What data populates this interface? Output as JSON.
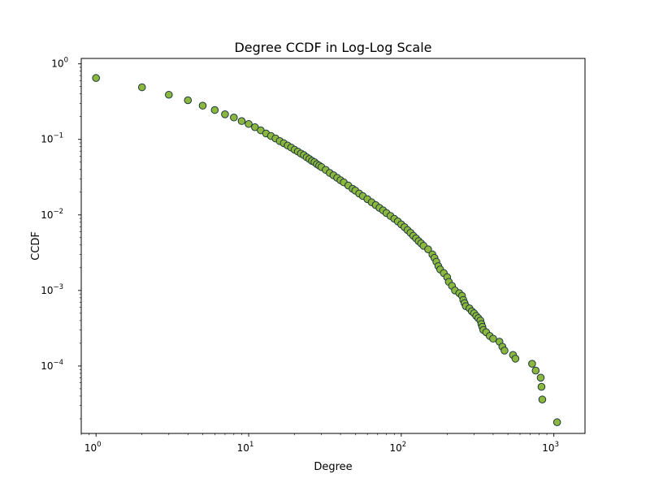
{
  "chart_data": {
    "type": "scatter",
    "title": "Degree CCDF in Log-Log Scale",
    "xlabel": "Degree",
    "ylabel": "CCDF",
    "xscale": "log",
    "yscale": "log",
    "xlim": [
      0.8,
      1600
    ],
    "ylim": [
      1.28e-05,
      1.18
    ],
    "grid": false,
    "legend": "none",
    "marker_fill": "#8db63f",
    "marker_edge": "#1c3a3e",
    "x_ticks": [
      {
        "value": 1,
        "base": "10",
        "exp": "0"
      },
      {
        "value": 10,
        "base": "10",
        "exp": "1"
      },
      {
        "value": 100,
        "base": "10",
        "exp": "2"
      },
      {
        "value": 1000,
        "base": "10",
        "exp": "3"
      }
    ],
    "y_ticks": [
      {
        "value": 0.0001,
        "base": "10",
        "exp": "−4"
      },
      {
        "value": 0.001,
        "base": "10",
        "exp": "−3"
      },
      {
        "value": 0.01,
        "base": "10",
        "exp": "−2"
      },
      {
        "value": 0.1,
        "base": "10",
        "exp": "−1"
      },
      {
        "value": 1,
        "base": "10",
        "exp": "0"
      }
    ],
    "points": [
      [
        1,
        0.65
      ],
      [
        2,
        0.49
      ],
      [
        3,
        0.39
      ],
      [
        4,
        0.33
      ],
      [
        5,
        0.28
      ],
      [
        6,
        0.245
      ],
      [
        7,
        0.215
      ],
      [
        8,
        0.195
      ],
      [
        9,
        0.175
      ],
      [
        10,
        0.16
      ],
      [
        11,
        0.145
      ],
      [
        12,
        0.132
      ],
      [
        13,
        0.12
      ],
      [
        14,
        0.111
      ],
      [
        15,
        0.103
      ],
      [
        16,
        0.095
      ],
      [
        17,
        0.089
      ],
      [
        18,
        0.083
      ],
      [
        19,
        0.078
      ],
      [
        20,
        0.073
      ],
      [
        21,
        0.069
      ],
      [
        22,
        0.065
      ],
      [
        23,
        0.062
      ],
      [
        24,
        0.058
      ],
      [
        25,
        0.055
      ],
      [
        26,
        0.052
      ],
      [
        27,
        0.05
      ],
      [
        28,
        0.047
      ],
      [
        29,
        0.045
      ],
      [
        30,
        0.043
      ],
      [
        32,
        0.0395
      ],
      [
        34,
        0.036
      ],
      [
        36,
        0.0335
      ],
      [
        38,
        0.031
      ],
      [
        40,
        0.0288
      ],
      [
        42,
        0.027
      ],
      [
        45,
        0.0245
      ],
      [
        48,
        0.0222
      ],
      [
        50,
        0.021
      ],
      [
        53,
        0.0192
      ],
      [
        56,
        0.0178
      ],
      [
        60,
        0.0162
      ],
      [
        64,
        0.0147
      ],
      [
        68,
        0.0135
      ],
      [
        72,
        0.0124
      ],
      [
        76,
        0.0115
      ],
      [
        80,
        0.0106
      ],
      [
        85,
        0.0097
      ],
      [
        90,
        0.0089
      ],
      [
        95,
        0.0082
      ],
      [
        100,
        0.0075
      ],
      [
        105,
        0.0069
      ],
      [
        110,
        0.0063
      ],
      [
        115,
        0.0058
      ],
      [
        120,
        0.0053
      ],
      [
        125,
        0.0049
      ],
      [
        130,
        0.0045
      ],
      [
        135,
        0.0042
      ],
      [
        140,
        0.0039
      ],
      [
        150,
        0.0035
      ],
      [
        160,
        0.003
      ],
      [
        165,
        0.0027
      ],
      [
        170,
        0.0024
      ],
      [
        175,
        0.0021
      ],
      [
        180,
        0.0019
      ],
      [
        190,
        0.0017
      ],
      [
        200,
        0.0015
      ],
      [
        205,
        0.0013
      ],
      [
        215,
        0.00115
      ],
      [
        225,
        0.001
      ],
      [
        240,
        0.00092
      ],
      [
        250,
        0.00085
      ],
      [
        255,
        0.00075
      ],
      [
        260,
        0.00068
      ],
      [
        265,
        0.00062
      ],
      [
        280,
        0.00058
      ],
      [
        290,
        0.00053
      ],
      [
        300,
        0.0005
      ],
      [
        310,
        0.00046
      ],
      [
        320,
        0.00043
      ],
      [
        330,
        0.0004
      ],
      [
        335,
        0.00036
      ],
      [
        340,
        0.00033
      ],
      [
        345,
        0.0003
      ],
      [
        360,
        0.00028
      ],
      [
        380,
        0.00025
      ],
      [
        400,
        0.00023
      ],
      [
        440,
        0.00021
      ],
      [
        460,
        0.00018
      ],
      [
        475,
        0.00016
      ],
      [
        540,
        0.00014
      ],
      [
        560,
        0.000125
      ],
      [
        720,
        0.000107
      ],
      [
        760,
        8.7e-05
      ],
      [
        820,
        7e-05
      ],
      [
        830,
        5.3e-05
      ],
      [
        840,
        3.6e-05
      ],
      [
        1050,
        1.8e-05
      ]
    ]
  }
}
